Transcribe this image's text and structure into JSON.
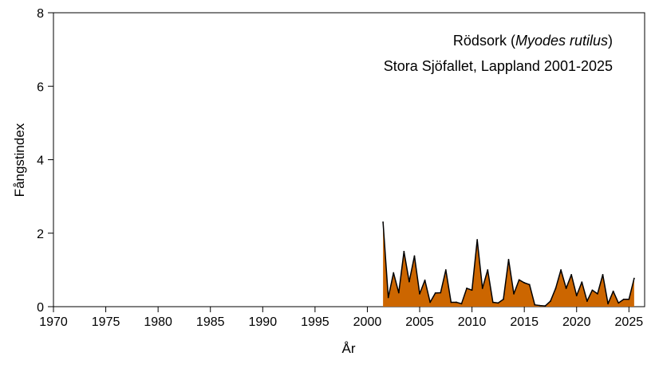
{
  "chart_data": {
    "type": "area",
    "title_line1_prefix": "Rödsork (",
    "title_line1_species": "Myodes rutilus",
    "title_line1_suffix": ")",
    "title_line2": "Stora Sjöfallet, Lappland 2001-2025",
    "xlabel": "År",
    "ylabel": "Fångstindex",
    "xlim": [
      1970,
      2026.5
    ],
    "ylim": [
      0,
      8
    ],
    "xticks": [
      1970,
      1975,
      1980,
      1985,
      1990,
      1995,
      2000,
      2005,
      2010,
      2015,
      2020,
      2025
    ],
    "yticks": [
      0,
      2,
      4,
      6,
      8
    ],
    "grid": false,
    "fill_color": "#CC6600",
    "line_color": "#000000",
    "series": [
      {
        "x": [
          2001.5,
          2002,
          2002.5,
          2003,
          2003.5,
          2004,
          2004.5,
          2005,
          2005.5,
          2006,
          2006.5,
          2007,
          2007.5,
          2008,
          2008.5,
          2009,
          2009.5,
          2010,
          2010.5,
          2011,
          2011.5,
          2012,
          2012.5,
          2013,
          2013.5,
          2014,
          2014.5,
          2015,
          2015.5,
          2016,
          2016.5,
          2017,
          2017.5,
          2018,
          2018.5,
          2019,
          2019.5,
          2020,
          2020.5,
          2021,
          2021.5,
          2022,
          2022.5,
          2023,
          2023.5,
          2024,
          2024.5,
          2025,
          2025.5
        ],
        "y": [
          2.3,
          0.25,
          0.92,
          0.38,
          1.5,
          0.68,
          1.38,
          0.35,
          0.72,
          0.12,
          0.37,
          0.38,
          1.0,
          0.12,
          0.12,
          0.08,
          0.5,
          0.45,
          1.82,
          0.5,
          1.0,
          0.12,
          0.1,
          0.2,
          1.28,
          0.35,
          0.73,
          0.65,
          0.6,
          0.05,
          0.03,
          0.02,
          0.15,
          0.5,
          1.0,
          0.5,
          0.87,
          0.3,
          0.67,
          0.15,
          0.45,
          0.35,
          0.87,
          0.08,
          0.42,
          0.1,
          0.2,
          0.2,
          0.77
        ]
      }
    ]
  }
}
